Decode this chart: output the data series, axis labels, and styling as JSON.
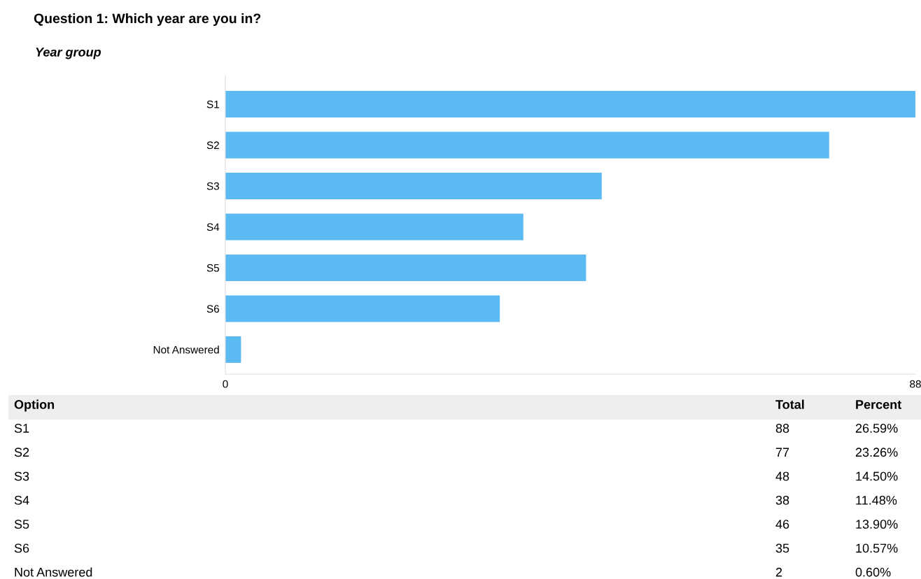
{
  "chart_data": {
    "type": "bar",
    "orientation": "horizontal",
    "title": "Question 1: Which year are you in?",
    "subtitle": "Year group",
    "categories": [
      "S1",
      "S2",
      "S3",
      "S4",
      "S5",
      "S6",
      "Not Answered"
    ],
    "values": [
      88,
      77,
      48,
      38,
      46,
      35,
      2
    ],
    "color": "#5bbaf2",
    "xlim": [
      0,
      88
    ],
    "xticks": [
      0,
      88
    ],
    "grid": false,
    "annotations": [
      "Option",
      "Total",
      "Percent",
      "88",
      "77",
      "48",
      "38",
      "46",
      "35",
      "2",
      "26.59%",
      "23.26%",
      "14.50%",
      "11.48%",
      "13.90%",
      "10.57%",
      "0.60%"
    ]
  }
}
